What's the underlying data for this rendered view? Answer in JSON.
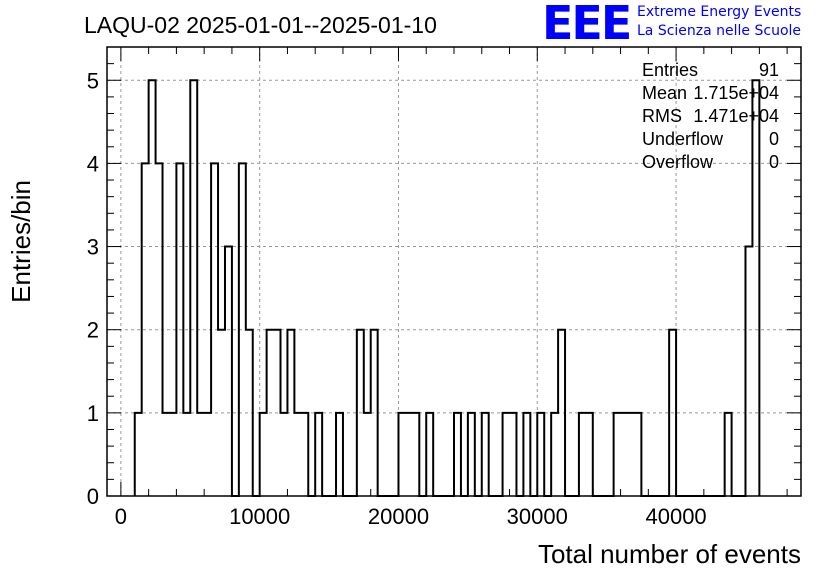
{
  "chart_data": {
    "type": "bar",
    "histogram": true,
    "title": "LAQU-02 2025-01-01--2025-01-10",
    "xlabel": "Total number of events",
    "ylabel": "Entries/bin",
    "xlim": [
      -1000,
      49000
    ],
    "ylim": [
      0,
      5.4
    ],
    "bin_width": 500,
    "x_ticks": [
      0,
      10000,
      20000,
      30000,
      40000
    ],
    "x_tick_labels": [
      "0",
      "10000",
      "20000",
      "30000",
      "40000"
    ],
    "y_ticks": [
      0,
      1,
      2,
      3,
      4,
      5
    ],
    "y_tick_labels": [
      "0",
      "1",
      "2",
      "3",
      "4",
      "5"
    ],
    "grid": true,
    "bins": [
      {
        "x": 1000,
        "y": 1
      },
      {
        "x": 1500,
        "y": 4
      },
      {
        "x": 2000,
        "y": 5
      },
      {
        "x": 2500,
        "y": 4
      },
      {
        "x": 3000,
        "y": 1
      },
      {
        "x": 3500,
        "y": 1
      },
      {
        "x": 4000,
        "y": 4
      },
      {
        "x": 4500,
        "y": 1
      },
      {
        "x": 5000,
        "y": 5
      },
      {
        "x": 5500,
        "y": 1
      },
      {
        "x": 6000,
        "y": 1
      },
      {
        "x": 6500,
        "y": 4
      },
      {
        "x": 7000,
        "y": 2
      },
      {
        "x": 7500,
        "y": 3
      },
      {
        "x": 8000,
        "y": 0
      },
      {
        "x": 8500,
        "y": 4
      },
      {
        "x": 9000,
        "y": 2
      },
      {
        "x": 9500,
        "y": 0
      },
      {
        "x": 10000,
        "y": 1
      },
      {
        "x": 10500,
        "y": 2
      },
      {
        "x": 11000,
        "y": 2
      },
      {
        "x": 11500,
        "y": 1
      },
      {
        "x": 12000,
        "y": 2
      },
      {
        "x": 12500,
        "y": 1
      },
      {
        "x": 13000,
        "y": 1
      },
      {
        "x": 13500,
        "y": 0
      },
      {
        "x": 14000,
        "y": 1
      },
      {
        "x": 14500,
        "y": 0
      },
      {
        "x": 15000,
        "y": 0
      },
      {
        "x": 15500,
        "y": 1
      },
      {
        "x": 16000,
        "y": 0
      },
      {
        "x": 16500,
        "y": 0
      },
      {
        "x": 17000,
        "y": 2
      },
      {
        "x": 17500,
        "y": 1
      },
      {
        "x": 18000,
        "y": 2
      },
      {
        "x": 18500,
        "y": 0
      },
      {
        "x": 19000,
        "y": 0
      },
      {
        "x": 19500,
        "y": 0
      },
      {
        "x": 20000,
        "y": 1
      },
      {
        "x": 20500,
        "y": 1
      },
      {
        "x": 21000,
        "y": 1
      },
      {
        "x": 21500,
        "y": 0
      },
      {
        "x": 22000,
        "y": 1
      },
      {
        "x": 22500,
        "y": 0
      },
      {
        "x": 23000,
        "y": 0
      },
      {
        "x": 23500,
        "y": 0
      },
      {
        "x": 24000,
        "y": 1
      },
      {
        "x": 24500,
        "y": 0
      },
      {
        "x": 25000,
        "y": 1
      },
      {
        "x": 25500,
        "y": 0
      },
      {
        "x": 26000,
        "y": 1
      },
      {
        "x": 26500,
        "y": 0
      },
      {
        "x": 27000,
        "y": 0
      },
      {
        "x": 27500,
        "y": 1
      },
      {
        "x": 28000,
        "y": 1
      },
      {
        "x": 28500,
        "y": 0
      },
      {
        "x": 29000,
        "y": 1
      },
      {
        "x": 29500,
        "y": 0
      },
      {
        "x": 30000,
        "y": 1
      },
      {
        "x": 30500,
        "y": 0
      },
      {
        "x": 31000,
        "y": 1
      },
      {
        "x": 31500,
        "y": 2
      },
      {
        "x": 32000,
        "y": 0
      },
      {
        "x": 32500,
        "y": 0
      },
      {
        "x": 33000,
        "y": 1
      },
      {
        "x": 33500,
        "y": 1
      },
      {
        "x": 34000,
        "y": 0
      },
      {
        "x": 34500,
        "y": 0
      },
      {
        "x": 35000,
        "y": 0
      },
      {
        "x": 35500,
        "y": 1
      },
      {
        "x": 36000,
        "y": 1
      },
      {
        "x": 36500,
        "y": 1
      },
      {
        "x": 37000,
        "y": 1
      },
      {
        "x": 37500,
        "y": 0
      },
      {
        "x": 38000,
        "y": 0
      },
      {
        "x": 38500,
        "y": 0
      },
      {
        "x": 39000,
        "y": 0
      },
      {
        "x": 39500,
        "y": 2
      },
      {
        "x": 40000,
        "y": 0
      },
      {
        "x": 40500,
        "y": 0
      },
      {
        "x": 41000,
        "y": 0
      },
      {
        "x": 41500,
        "y": 0
      },
      {
        "x": 42000,
        "y": 0
      },
      {
        "x": 42500,
        "y": 0
      },
      {
        "x": 43000,
        "y": 0
      },
      {
        "x": 43500,
        "y": 1
      },
      {
        "x": 44000,
        "y": 0
      },
      {
        "x": 44500,
        "y": 0
      },
      {
        "x": 45000,
        "y": 3
      },
      {
        "x": 45500,
        "y": 5
      }
    ],
    "stats": [
      {
        "label": "Entries",
        "value": "91"
      },
      {
        "label": "Mean",
        "value": "1.715e+04"
      },
      {
        "label": "RMS",
        "value": "1.471e+04"
      },
      {
        "label": "Underflow",
        "value": "0"
      },
      {
        "label": "Overflow",
        "value": "0"
      }
    ],
    "line_color": "#000000",
    "grid_color": "#999999"
  },
  "logo": {
    "mark": "EEE",
    "line1": "Extreme Energy Events",
    "line2": "La Scienza nelle Scuole",
    "color": "#0000ff"
  }
}
